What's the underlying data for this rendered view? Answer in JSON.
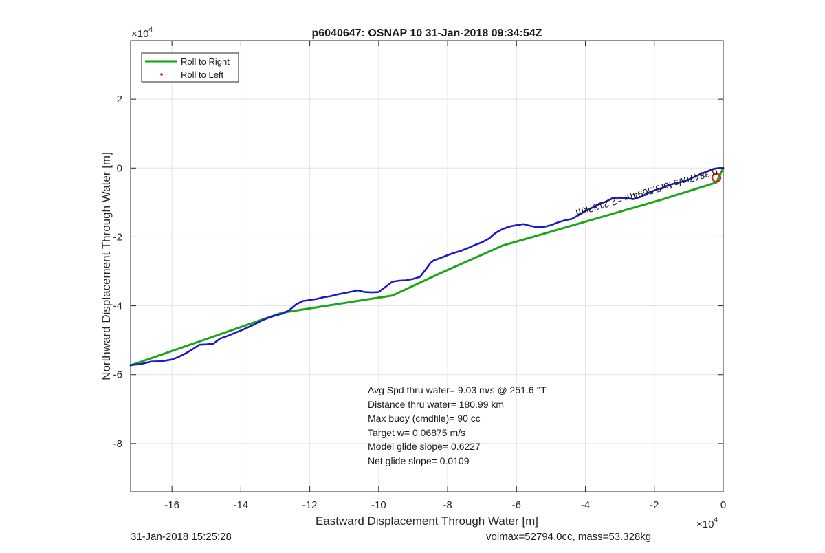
{
  "chart_data": {
    "type": "line",
    "title": "p6040647: OSNAP 10 31-Jan-2018 09:34:54Z",
    "xlabel": "Eastward Displacement Through Water [m]",
    "ylabel": "Northward Displacement Through Water [m]",
    "x_exponent_label": "×10",
    "y_exponent_label": "×10",
    "exponent_power": "4",
    "xlim": [
      -172000,
      0
    ],
    "ylim": [
      -94000,
      37000
    ],
    "x_ticks": [
      -160000,
      -140000,
      -120000,
      -100000,
      -80000,
      -60000,
      -40000,
      -20000,
      0
    ],
    "x_tick_labels": [
      "-16",
      "-14",
      "-12",
      "-10",
      "-8",
      "-6",
      "-4",
      "-2",
      "0"
    ],
    "y_ticks": [
      20000,
      0,
      -20000,
      -40000,
      -60000,
      -80000
    ],
    "y_tick_labels": [
      "2",
      "0",
      "-2",
      "-4",
      "-6",
      "-8"
    ],
    "grid": true,
    "legend_position": "top-left",
    "legend": [
      {
        "label": "Roll to Right",
        "color": "#00aa00",
        "marker": "line"
      },
      {
        "label": "Roll to Left",
        "color": "#ff0000",
        "marker": "dot"
      }
    ],
    "series": [
      {
        "name": "Roll to Right",
        "color": "#1aa51a",
        "x": [
          -172000,
          -128000,
          -96000,
          -82000,
          -64000,
          -18000,
          -2000,
          0
        ],
        "y": [
          -57300,
          -42000,
          -37000,
          -30500,
          -22500,
          -9200,
          -4200,
          0
        ]
      },
      {
        "color": "#1a1acc",
        "x": [
          -172000,
          -169000,
          -166000,
          -163000,
          -160000,
          -158000,
          -156000,
          -154000,
          -152000,
          -150000,
          -148000,
          -146000,
          -144000,
          -142000,
          -140000,
          -138000,
          -136000,
          -134000,
          -132000,
          -130000,
          -128000,
          -126000,
          -124000,
          -122000,
          -120000,
          -118000,
          -116000,
          -114000,
          -112000,
          -110000,
          -108000,
          -106000,
          -104000,
          -102000,
          -100000,
          -98000,
          -96000,
          -94000,
          -92000,
          -90000,
          -88000,
          -86000,
          -85000,
          -84000,
          -82000,
          -80000,
          -78000,
          -76000,
          -74000,
          -72000,
          -70000,
          -68000,
          -66000,
          -64000,
          -62000,
          -60000,
          -58000,
          -56000,
          -54000,
          -52000,
          -50000,
          -48000,
          -46000,
          -44000,
          -42000,
          -40000,
          -38000,
          -36000,
          -34000,
          -32000,
          -30000,
          -28000,
          -26000,
          -24000,
          -22000,
          -20000,
          -18000,
          -16000,
          -14000,
          -12000,
          -10000,
          -8000,
          -6000,
          -4000,
          -3000,
          -2000,
          -1000,
          0
        ],
        "y": [
          -57200,
          -56900,
          -56200,
          -56100,
          -55600,
          -54800,
          -53800,
          -52600,
          -51300,
          -51200,
          -51000,
          -49500,
          -48800,
          -48000,
          -47200,
          -46300,
          -45400,
          -44300,
          -43500,
          -42800,
          -42300,
          -41300,
          -39600,
          -38600,
          -38300,
          -38000,
          -37500,
          -37200,
          -36700,
          -36300,
          -35900,
          -35500,
          -36000,
          -36100,
          -36000,
          -34500,
          -33000,
          -32700,
          -32600,
          -32200,
          -31600,
          -29000,
          -27600,
          -26800,
          -26100,
          -25300,
          -24600,
          -24000,
          -23200,
          -22300,
          -21600,
          -20500,
          -18800,
          -17700,
          -17000,
          -16600,
          -16300,
          -16800,
          -17200,
          -17100,
          -16600,
          -15800,
          -15200,
          -14800,
          -13700,
          -12500,
          -11500,
          -10500,
          -9700,
          -8700,
          -8600,
          -8800,
          -9000,
          -8400,
          -7400,
          -6500,
          -5900,
          -5000,
          -4500,
          -4000,
          -3300,
          -2400,
          -1500,
          -700,
          -300,
          -100,
          0,
          0
        ]
      }
    ],
    "end_circle": {
      "x": -2000,
      "y": -2800,
      "color": "#e02020"
    },
    "rotated_annotation": "0.3847m/s for5.5694hr =2.213?km",
    "stats_text": [
      "Avg Spd thru water=  9.03 m/s @ 251.6 °T",
      "Distance thru water= 180.99 km",
      "Max buoy (cmdfile)= 90 cc",
      "Target w= 0.06875 m/s",
      "Model glide slope= 0.6227",
      "Net glide slope= 0.0109"
    ]
  },
  "footer": {
    "timestamp": "31-Jan-2018 15:25:28",
    "vehicle_info": "volmax=52794.0cc, mass=53.328kg"
  }
}
